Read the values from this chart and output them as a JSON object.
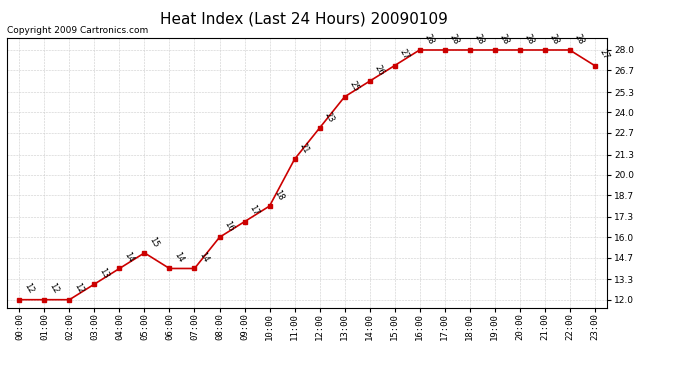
{
  "title": "Heat Index (Last 24 Hours) 20090109",
  "copyright": "Copyright 2009 Cartronics.com",
  "hours": [
    0,
    1,
    2,
    3,
    4,
    5,
    6,
    7,
    8,
    9,
    10,
    11,
    12,
    13,
    14,
    15,
    16,
    17,
    18,
    19,
    20,
    21,
    22,
    23
  ],
  "x_labels": [
    "00:00",
    "01:00",
    "02:00",
    "03:00",
    "04:00",
    "05:00",
    "06:00",
    "07:00",
    "08:00",
    "09:00",
    "10:00",
    "11:00",
    "12:00",
    "13:00",
    "14:00",
    "15:00",
    "16:00",
    "17:00",
    "18:00",
    "19:00",
    "20:00",
    "21:00",
    "22:00",
    "23:00"
  ],
  "values": [
    12,
    12,
    12,
    13,
    14,
    15,
    14,
    14,
    16,
    17,
    18,
    21,
    23,
    25,
    26,
    27,
    28,
    28,
    28,
    28,
    28,
    28,
    28,
    27
  ],
  "y_ticks": [
    12.0,
    13.3,
    14.7,
    16.0,
    17.3,
    18.7,
    20.0,
    21.3,
    22.7,
    24.0,
    25.3,
    26.7,
    28.0
  ],
  "ylim": [
    11.5,
    28.8
  ],
  "line_color": "#cc0000",
  "marker_color": "#cc0000",
  "bg_color": "#ffffff",
  "grid_color": "#cccccc",
  "title_fontsize": 11,
  "label_fontsize": 6.5,
  "annot_fontsize": 6,
  "copyright_fontsize": 6.5
}
